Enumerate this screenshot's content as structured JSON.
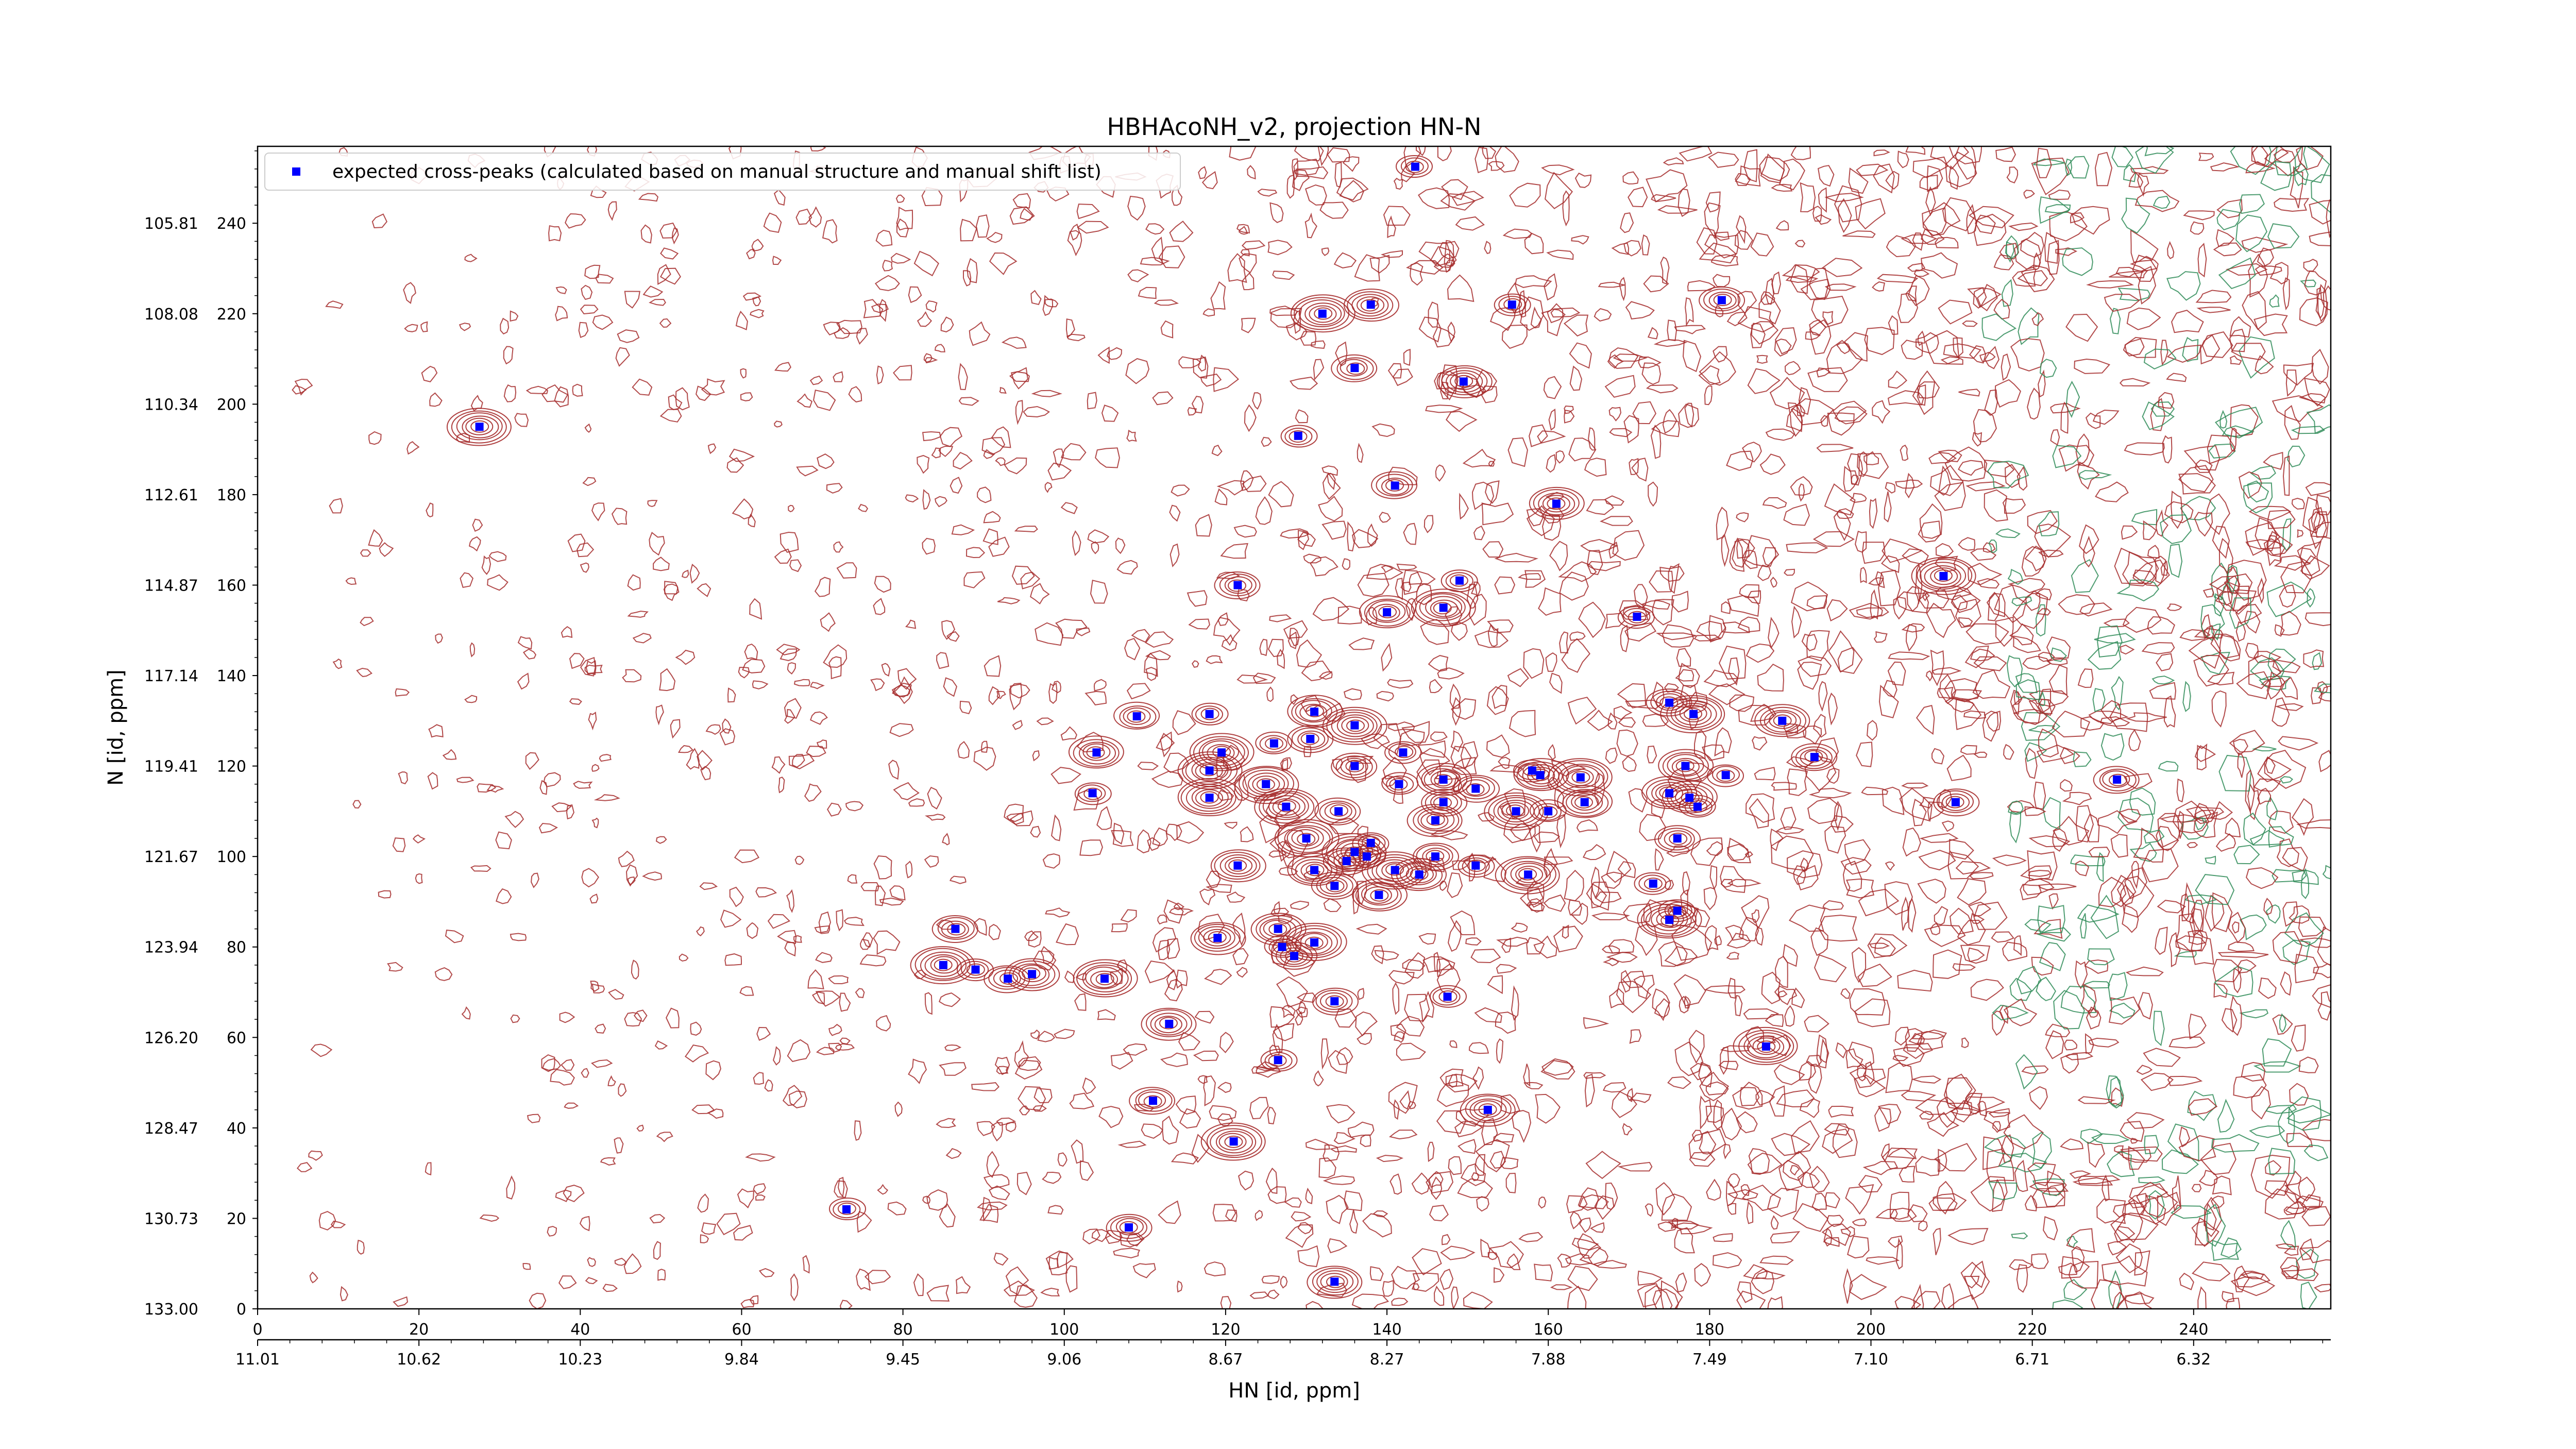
{
  "chart_data": {
    "type": "scatter",
    "title": "HBHAcoNH_v2, projection HN-N",
    "xlabel": "HN [id, ppm]",
    "ylabel": "N [id, ppm]",
    "xlim": [
      0,
      257
    ],
    "ylim": [
      0,
      257
    ],
    "grid": false,
    "legend_placement": "top-left",
    "x_index_ticks": [
      "0",
      "20",
      "40",
      "60",
      "80",
      "100",
      "120",
      "140",
      "160",
      "180",
      "200",
      "220",
      "240"
    ],
    "x_ppm_ticks": [
      "11.01",
      "10.62",
      "10.23",
      "9.84",
      "9.45",
      "9.06",
      "8.67",
      "8.27",
      "7.88",
      "7.49",
      "7.10",
      "6.71",
      "6.32"
    ],
    "y_index_ticks": [
      "0",
      "20",
      "40",
      "60",
      "80",
      "100",
      "120",
      "140",
      "160",
      "180",
      "200",
      "220",
      "240"
    ],
    "y_ppm_ticks": [
      "133.00",
      "130.73",
      "128.47",
      "126.20",
      "123.94",
      "121.67",
      "119.41",
      "117.14",
      "114.87",
      "112.61",
      "110.34",
      "108.08",
      "105.81"
    ],
    "colors": {
      "marker": "#0000ff",
      "contour_positive": "#a52a2a",
      "contour_negative": "#2e8b57",
      "axis": "#000000"
    },
    "series": [
      {
        "name": "expected cross-peaks (calculated based on manual structure and manual shift list)",
        "points": [
          [
            143.5,
            252.5
          ],
          [
            181.5,
            223
          ],
          [
            138,
            222
          ],
          [
            132,
            220
          ],
          [
            155.5,
            222
          ],
          [
            136,
            208
          ],
          [
            149.5,
            205
          ],
          [
            27.5,
            195
          ],
          [
            129,
            193
          ],
          [
            141,
            182
          ],
          [
            161,
            178
          ],
          [
            209,
            162
          ],
          [
            149,
            161
          ],
          [
            121.5,
            160
          ],
          [
            140,
            154
          ],
          [
            147,
            155
          ],
          [
            171,
            153
          ],
          [
            175,
            134
          ],
          [
            131,
            132
          ],
          [
            178,
            131.5
          ],
          [
            118,
            131.5
          ],
          [
            109,
            131
          ],
          [
            189,
            130
          ],
          [
            136,
            129
          ],
          [
            126,
            125
          ],
          [
            130.5,
            126
          ],
          [
            104,
            123
          ],
          [
            119.5,
            123
          ],
          [
            142,
            123
          ],
          [
            193,
            122
          ],
          [
            177,
            120
          ],
          [
            118,
            119
          ],
          [
            158,
            119
          ],
          [
            136,
            120
          ],
          [
            159,
            118
          ],
          [
            164,
            117.5
          ],
          [
            182,
            118
          ],
          [
            230.5,
            117
          ],
          [
            147,
            117
          ],
          [
            125,
            116
          ],
          [
            141.5,
            116
          ],
          [
            151,
            115
          ],
          [
            175,
            114
          ],
          [
            118,
            113
          ],
          [
            103.5,
            114
          ],
          [
            147,
            112
          ],
          [
            177.5,
            113
          ],
          [
            127.5,
            111
          ],
          [
            178.5,
            111
          ],
          [
            210.5,
            112
          ],
          [
            164.5,
            112
          ],
          [
            156,
            110
          ],
          [
            160,
            110
          ],
          [
            134,
            110
          ],
          [
            146,
            108
          ],
          [
            130,
            104
          ],
          [
            138,
            103
          ],
          [
            176,
            104
          ],
          [
            131,
            97
          ],
          [
            141,
            97
          ],
          [
            151,
            98
          ],
          [
            135,
            99
          ],
          [
            121.5,
            98
          ],
          [
            136,
            101
          ],
          [
            137.5,
            100
          ],
          [
            146,
            100
          ],
          [
            144,
            96
          ],
          [
            157.5,
            96
          ],
          [
            173,
            94
          ],
          [
            133.5,
            93.5
          ],
          [
            139,
            91.5
          ],
          [
            175,
            86
          ],
          [
            176,
            88
          ],
          [
            86.5,
            84
          ],
          [
            126.5,
            84
          ],
          [
            131,
            81
          ],
          [
            127,
            80
          ],
          [
            128.5,
            78
          ],
          [
            119,
            82
          ],
          [
            85,
            76
          ],
          [
            89,
            75
          ],
          [
            93,
            73
          ],
          [
            96,
            74
          ],
          [
            105,
            73
          ],
          [
            147.5,
            69
          ],
          [
            133.5,
            68
          ],
          [
            113,
            63
          ],
          [
            187,
            58
          ],
          [
            126.5,
            55
          ],
          [
            111,
            46
          ],
          [
            152.5,
            44
          ],
          [
            121,
            37
          ],
          [
            73,
            22
          ],
          [
            108,
            18
          ],
          [
            133.5,
            6
          ]
        ]
      }
    ]
  }
}
